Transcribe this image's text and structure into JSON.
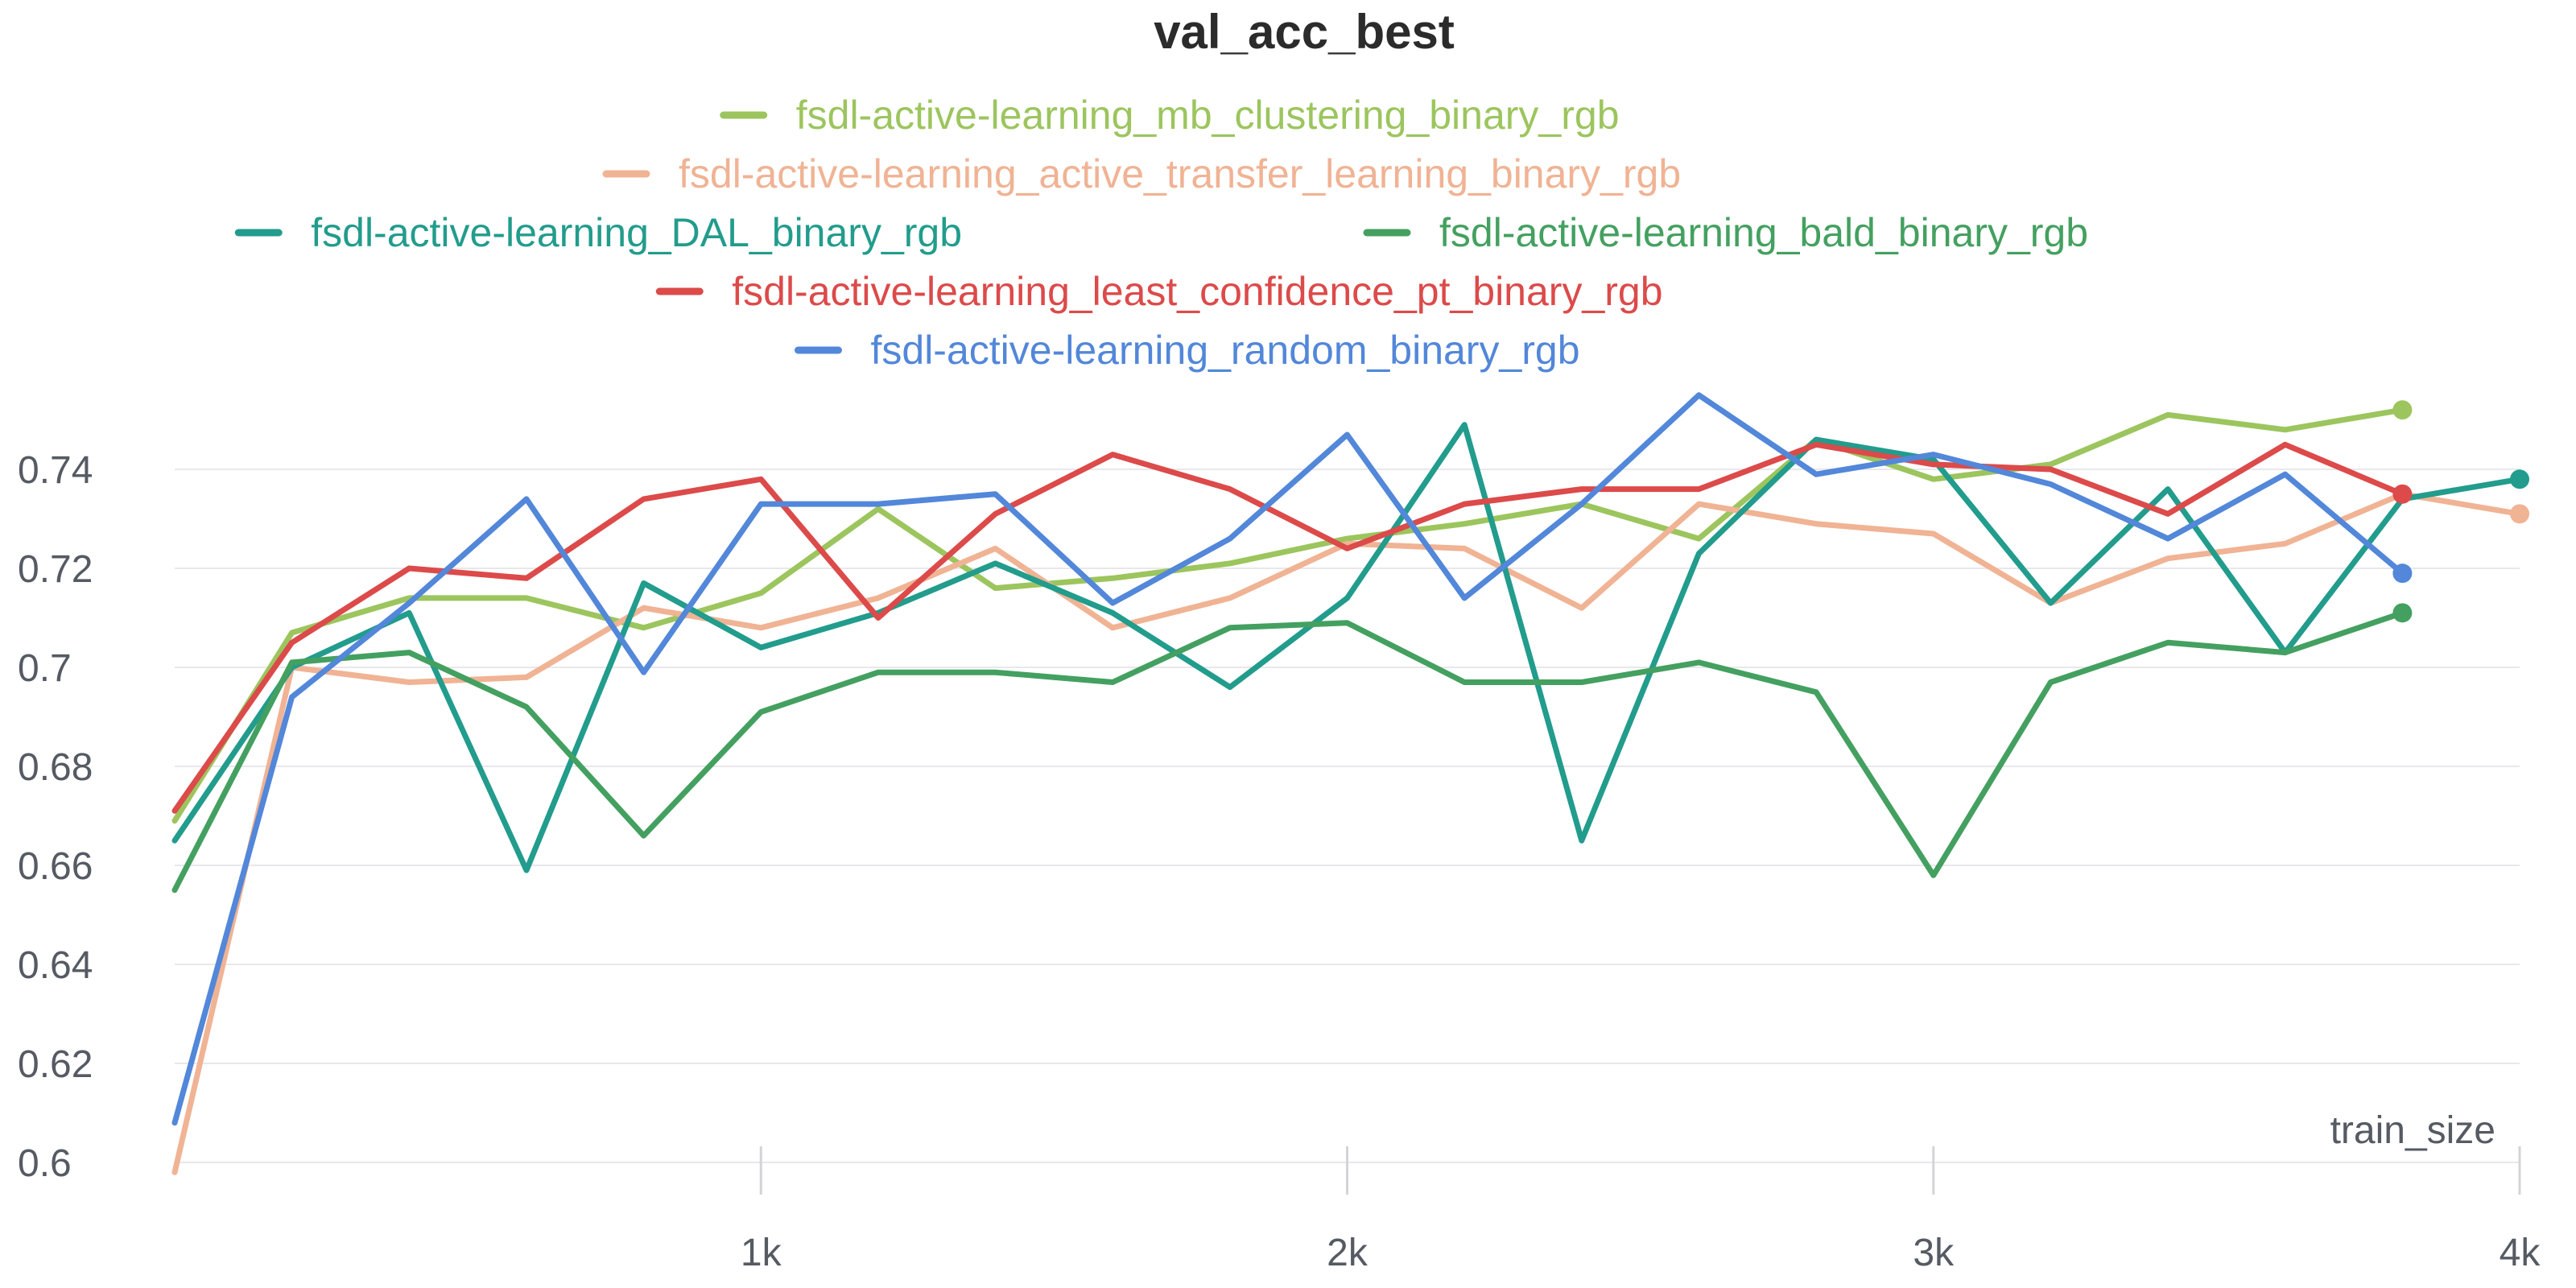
{
  "chart_data": {
    "type": "line",
    "title": "val_acc_best",
    "xlabel": "train_size",
    "ylabel": "",
    "xlim": [
      0,
      4000
    ],
    "ylim": [
      0.6,
      0.76
    ],
    "x_ticks": [
      {
        "value": 1000,
        "label": "1k"
      },
      {
        "value": 2000,
        "label": "2k"
      },
      {
        "value": 3000,
        "label": "3k"
      },
      {
        "value": 4000,
        "label": "4k"
      }
    ],
    "y_ticks": [
      {
        "value": 0.6,
        "label": "0.6"
      },
      {
        "value": 0.62,
        "label": "0.62"
      },
      {
        "value": 0.64,
        "label": "0.64"
      },
      {
        "value": 0.66,
        "label": "0.66"
      },
      {
        "value": 0.68,
        "label": "0.68"
      },
      {
        "value": 0.7,
        "label": "0.7"
      },
      {
        "value": 0.72,
        "label": "0.72"
      },
      {
        "value": 0.74,
        "label": "0.74"
      }
    ],
    "grid": true,
    "legend_position": "top",
    "x": [
      0,
      200,
      400,
      600,
      800,
      1000,
      1200,
      1400,
      1600,
      1800,
      2000,
      2200,
      2400,
      2600,
      2800,
      3000,
      3200,
      3400,
      3600,
      3800,
      4000
    ],
    "series": [
      {
        "name": "fsdl-active-learning_mb_clustering_binary_rgb",
        "color": "#9cc55e",
        "values": [
          0.669,
          0.707,
          0.714,
          0.714,
          0.708,
          0.715,
          0.732,
          0.716,
          0.718,
          0.721,
          0.726,
          0.729,
          0.733,
          0.726,
          0.746,
          0.738,
          0.741,
          0.751,
          0.748,
          0.752,
          null
        ]
      },
      {
        "name": "fsdl-active-learning_active_transfer_learning_binary_rgb",
        "color": "#f0b394",
        "values": [
          0.598,
          0.7,
          0.697,
          0.698,
          0.712,
          0.708,
          0.714,
          0.724,
          0.708,
          0.714,
          0.725,
          0.724,
          0.712,
          0.733,
          0.729,
          0.727,
          0.713,
          0.722,
          0.725,
          0.735,
          0.731
        ]
      },
      {
        "name": "fsdl-active-learning_DAL_binary_rgb",
        "color": "#229c8c",
        "values": [
          0.665,
          0.7,
          0.711,
          0.659,
          0.717,
          0.704,
          0.711,
          0.721,
          0.711,
          0.696,
          0.714,
          0.749,
          0.665,
          0.723,
          0.746,
          0.742,
          0.713,
          0.736,
          0.703,
          0.734,
          0.738
        ]
      },
      {
        "name": "fsdl-active-learning_bald_binary_rgb",
        "color": "#44a060",
        "values": [
          0.655,
          0.701,
          0.703,
          0.692,
          0.666,
          0.691,
          0.699,
          0.699,
          0.697,
          0.708,
          0.709,
          0.697,
          0.697,
          0.701,
          0.695,
          0.658,
          0.697,
          0.705,
          0.703,
          0.711,
          null
        ]
      },
      {
        "name": "fsdl-active-learning_least_confidence_pt_binary_rgb",
        "color": "#dc4a4a",
        "values": [
          0.671,
          0.705,
          0.72,
          0.718,
          0.734,
          0.738,
          0.71,
          0.731,
          0.743,
          0.736,
          0.724,
          0.733,
          0.736,
          0.736,
          0.745,
          0.741,
          0.74,
          0.731,
          0.745,
          0.735,
          null
        ]
      },
      {
        "name": "fsdl-active-learning_random_binary_rgb",
        "color": "#5287d9",
        "values": [
          0.608,
          0.694,
          0.713,
          0.734,
          0.699,
          0.733,
          0.733,
          0.735,
          0.713,
          0.726,
          0.747,
          0.714,
          0.733,
          0.755,
          0.739,
          0.743,
          0.737,
          0.726,
          0.739,
          0.719,
          null
        ]
      }
    ]
  }
}
